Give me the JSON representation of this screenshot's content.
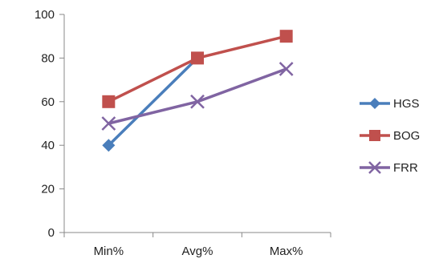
{
  "chart_data": {
    "type": "line",
    "categories": [
      "Min%",
      "Avg%",
      "Max%"
    ],
    "ylim": [
      0,
      100
    ],
    "yticks": [
      0,
      20,
      40,
      60,
      80,
      100
    ],
    "grid": false,
    "legend_position": "right",
    "series": [
      {
        "name": "HGS",
        "values": [
          40,
          80,
          null
        ],
        "color": "#4a7ebb",
        "marker": "diamond"
      },
      {
        "name": "BOG",
        "values": [
          60,
          80,
          90
        ],
        "color": "#c0504d",
        "marker": "square"
      },
      {
        "name": "FRR",
        "values": [
          50,
          60,
          75
        ],
        "color": "#8064a2",
        "marker": "x"
      }
    ]
  }
}
